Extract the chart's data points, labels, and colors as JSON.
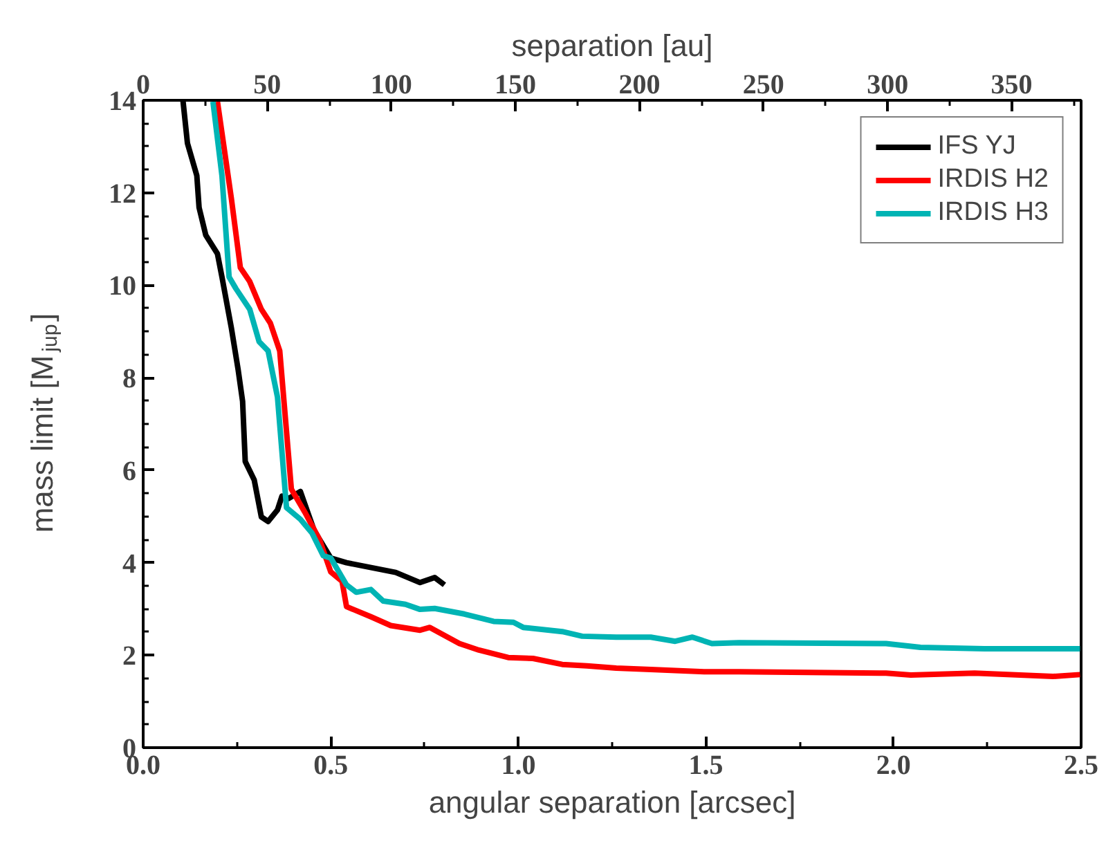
{
  "chart_data": {
    "type": "line",
    "xlabel": "angular separation [arcsec]",
    "ylabel": "mass limit [M$_{jup}$]",
    "x2label": "separation [au]",
    "xlim": [
      0,
      2.5
    ],
    "xticks": [
      {
        "value": 0,
        "label": "0.0"
      },
      0.5,
      {
        "value": 1,
        "label": "1.0"
      },
      1.5,
      {
        "value": 2,
        "label": "2.0"
      },
      2.5
    ],
    "ylim": [
      0,
      14
    ],
    "yticks": [
      0,
      2,
      4,
      6,
      8,
      10,
      12,
      14
    ],
    "x2lim": [
      0,
      378
    ],
    "x2ticks": [
      0,
      50,
      100,
      150,
      200,
      250,
      300,
      350
    ],
    "grid": false,
    "legend": "top right",
    "marker": "none",
    "line_style": "solid",
    "series": [
      {
        "name": "IFS YJ",
        "color": "#000000",
        "x": [
          0.106,
          0.118,
          0.143,
          0.149,
          0.167,
          0.198,
          0.21,
          0.235,
          0.253,
          0.265,
          0.272,
          0.296,
          0.315,
          0.333,
          0.358,
          0.37,
          0.388,
          0.419,
          0.456,
          0.5,
          0.542,
          0.673,
          0.738,
          0.777,
          0.803
        ],
        "values": [
          14,
          13.07,
          12.37,
          11.68,
          11.08,
          10.68,
          10.18,
          9.08,
          8.18,
          7.49,
          6.19,
          5.79,
          4.99,
          4.89,
          5.14,
          5.44,
          5.39,
          5.54,
          4.69,
          4.1,
          4.0,
          3.79,
          3.57,
          3.68,
          3.52
        ]
      },
      {
        "name": "IRDIS H2",
        "color": "#ff0000",
        "x": [
          0.198,
          0.235,
          0.259,
          0.284,
          0.315,
          0.339,
          0.364,
          0.395,
          0.431,
          0.47,
          0.5,
          0.53,
          0.542,
          0.607,
          0.66,
          0.738,
          0.764,
          0.843,
          0.895,
          0.973,
          1.039,
          1.117,
          1.183,
          1.261,
          1.353,
          1.497,
          1.588,
          1.98,
          2.046,
          2.216,
          2.425,
          2.497
        ],
        "values": [
          13.97,
          11.88,
          10.38,
          10.08,
          9.48,
          9.18,
          8.58,
          5.59,
          5.09,
          4.5,
          3.8,
          3.6,
          3.05,
          2.83,
          2.64,
          2.54,
          2.6,
          2.25,
          2.11,
          1.95,
          1.93,
          1.8,
          1.77,
          1.72,
          1.69,
          1.64,
          1.64,
          1.61,
          1.57,
          1.61,
          1.54,
          1.58
        ]
      },
      {
        "name": "IRDIS H3",
        "color": "#00b4b4",
        "x": [
          0.186,
          0.21,
          0.229,
          0.247,
          0.284,
          0.309,
          0.333,
          0.358,
          0.382,
          0.419,
          0.45,
          0.48,
          0.5,
          0.542,
          0.568,
          0.607,
          0.64,
          0.699,
          0.738,
          0.777,
          0.856,
          0.934,
          0.987,
          1.013,
          1.117,
          1.17,
          1.261,
          1.353,
          1.418,
          1.464,
          1.516,
          1.588,
          1.98,
          2.072,
          2.242,
          2.497
        ],
        "values": [
          13.97,
          12.37,
          10.18,
          9.93,
          9.48,
          8.78,
          8.58,
          7.58,
          5.19,
          4.94,
          4.64,
          4.15,
          4.1,
          3.52,
          3.36,
          3.42,
          3.17,
          3.1,
          2.99,
          3.01,
          2.89,
          2.73,
          2.71,
          2.6,
          2.51,
          2.41,
          2.39,
          2.39,
          2.3,
          2.39,
          2.25,
          2.27,
          2.25,
          2.17,
          2.14,
          2.14
        ]
      }
    ]
  }
}
